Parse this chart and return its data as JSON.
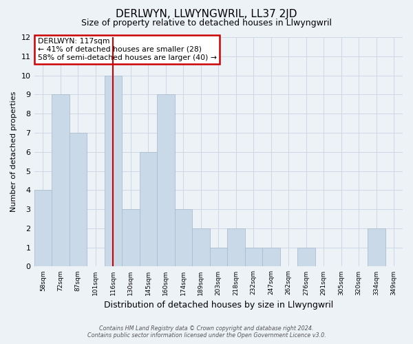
{
  "title": "DERLWYN, LLWYNGWRIL, LL37 2JD",
  "subtitle": "Size of property relative to detached houses in Llwyngwril",
  "xlabel": "Distribution of detached houses by size in Llwyngwril",
  "ylabel": "Number of detached properties",
  "footer_line1": "Contains HM Land Registry data © Crown copyright and database right 2024.",
  "footer_line2": "Contains public sector information licensed under the Open Government Licence v3.0.",
  "bins": [
    "58sqm",
    "72sqm",
    "87sqm",
    "101sqm",
    "116sqm",
    "130sqm",
    "145sqm",
    "160sqm",
    "174sqm",
    "189sqm",
    "203sqm",
    "218sqm",
    "232sqm",
    "247sqm",
    "262sqm",
    "276sqm",
    "291sqm",
    "305sqm",
    "320sqm",
    "334sqm",
    "349sqm"
  ],
  "values": [
    4,
    9,
    7,
    0,
    10,
    3,
    6,
    9,
    3,
    2,
    1,
    2,
    1,
    1,
    0,
    1,
    0,
    0,
    0,
    2,
    0
  ],
  "bar_color": "#c9d9e8",
  "bar_edge_color": "#aabdd0",
  "red_line_index": 4,
  "ylim": [
    0,
    12
  ],
  "yticks": [
    0,
    1,
    2,
    3,
    4,
    5,
    6,
    7,
    8,
    9,
    10,
    11,
    12
  ],
  "annotation_title": "DERLWYN: 117sqm",
  "annotation_line1": "← 41% of detached houses are smaller (28)",
  "annotation_line2": "58% of semi-detached houses are larger (40) →",
  "annotation_box_color": "#ffffff",
  "annotation_border_color": "#cc0000",
  "grid_color": "#ccd8e4",
  "background_color": "#edf2f7"
}
